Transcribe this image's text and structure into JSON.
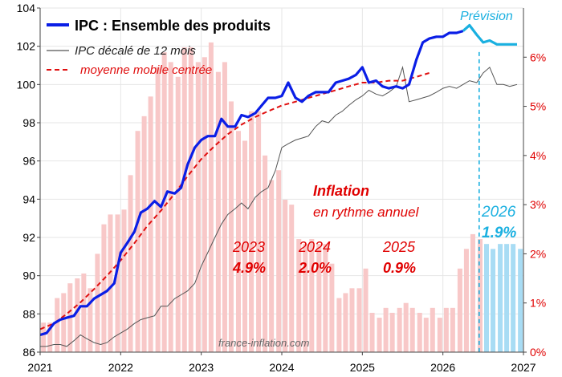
{
  "colors": {
    "ipc": "#0a1ee6",
    "lagged": "#555555",
    "moving_avg": "#e01010",
    "inflation_bar": "#f8c8c8",
    "forecast_bar": "#a8dcf4",
    "forecast": "#1ab0e0",
    "text_red": "#e00000",
    "grid": "#e6e6e6"
  },
  "chart_data": {
    "type": "line",
    "title": "",
    "x_axis": {
      "range": [
        2021,
        2027
      ],
      "ticks": [
        "2021",
        "2022",
        "2023",
        "2024",
        "2025",
        "2026",
        "2027"
      ]
    },
    "y_left": {
      "range": [
        86,
        104
      ],
      "ticks": [
        "86",
        "88",
        "90",
        "92",
        "94",
        "96",
        "98",
        "100",
        "102",
        "104"
      ]
    },
    "y_right": {
      "range": [
        0,
        7
      ],
      "ticks": [
        "0%",
        "1%",
        "2%",
        "3%",
        "4%",
        "5%",
        "6%"
      ]
    },
    "grid": true,
    "legend_position": "top-left",
    "legend": {
      "ipc": "IPC : Ensemble des produits",
      "lagged": "IPC décalé de 12 mois",
      "moving_avg": "moyenne mobile centrée"
    },
    "annotations": {
      "prevision": "Prévision",
      "inflation_title": "Inflation",
      "inflation_sub": "en rythme  annuel",
      "year_2023": "2023",
      "rate_2023": "4.9%",
      "year_2024": "2024",
      "rate_2024": "2.0%",
      "year_2025": "2025",
      "rate_2025": "0.9%",
      "year_2026": "2026",
      "rate_2026": "1.9%",
      "source": "france-inflation.com"
    },
    "forecast_start": 2026.45,
    "ipc_series": {
      "name": "IPC : Ensemble des produits",
      "x": [
        2021.0,
        2021.08,
        2021.17,
        2021.25,
        2021.33,
        2021.42,
        2021.5,
        2021.58,
        2021.67,
        2021.75,
        2021.83,
        2021.92,
        2022.0,
        2022.08,
        2022.17,
        2022.25,
        2022.33,
        2022.42,
        2022.5,
        2022.58,
        2022.67,
        2022.75,
        2022.83,
        2022.92,
        2023.0,
        2023.08,
        2023.17,
        2023.25,
        2023.33,
        2023.42,
        2023.5,
        2023.58,
        2023.67,
        2023.75,
        2023.83,
        2023.92,
        2024.0,
        2024.08,
        2024.17,
        2024.25,
        2024.33,
        2024.42,
        2024.5,
        2024.58,
        2024.67,
        2024.75,
        2024.83,
        2024.92,
        2025.0,
        2025.08,
        2025.17,
        2025.25,
        2025.33,
        2025.42,
        2025.5,
        2025.58,
        2025.67,
        2025.75,
        2025.83,
        2025.92,
        2026.0,
        2026.08,
        2026.17,
        2026.25,
        2026.33,
        2026.42,
        2026.5,
        2026.58,
        2026.67,
        2026.75,
        2026.83,
        2026.92
      ],
      "y": [
        86.9,
        87.0,
        87.5,
        87.7,
        87.8,
        87.9,
        88.4,
        88.4,
        88.8,
        89.0,
        89.2,
        89.6,
        91.2,
        91.7,
        92.3,
        93.3,
        93.5,
        93.9,
        93.6,
        94.4,
        94.3,
        94.6,
        95.8,
        96.7,
        97.1,
        97.3,
        97.3,
        98.2,
        97.8,
        97.8,
        98.4,
        98.3,
        98.5,
        98.9,
        99.3,
        99.3,
        99.4,
        100.1,
        99.3,
        99.1,
        99.4,
        99.6,
        99.6,
        99.6,
        100.1,
        100.2,
        100.3,
        100.5,
        100.9,
        100.1,
        100.2,
        99.9,
        99.8,
        99.9,
        99.8,
        100.0,
        101.3,
        102.2,
        102.4,
        102.5,
        102.5,
        102.7,
        102.7,
        102.8,
        103.1,
        102.6,
        102.2,
        102.3,
        102.1,
        102.1,
        102.1,
        102.1
      ]
    },
    "lagged_series": {
      "name": "IPC décalé de 12 mois",
      "x": [
        2021.0,
        2021.08,
        2021.17,
        2021.25,
        2021.33,
        2021.42,
        2021.5,
        2021.58,
        2021.67,
        2021.75,
        2021.83,
        2021.92,
        2022.0,
        2022.08,
        2022.17,
        2022.25,
        2022.33,
        2022.42,
        2022.5,
        2022.58,
        2022.67,
        2022.75,
        2022.83,
        2022.92,
        2023.0,
        2023.08,
        2023.17,
        2023.25,
        2023.33,
        2023.42,
        2023.5,
        2023.58,
        2023.67,
        2023.75,
        2023.83,
        2023.92,
        2024.0,
        2024.08,
        2024.17,
        2024.25,
        2024.33,
        2024.42,
        2024.5,
        2024.58,
        2024.67,
        2024.75,
        2024.83,
        2024.92,
        2025.0,
        2025.08,
        2025.17,
        2025.25,
        2025.33,
        2025.42,
        2025.5,
        2025.58,
        2025.67,
        2025.75,
        2025.83,
        2025.92,
        2026.0,
        2026.08,
        2026.17,
        2026.25,
        2026.33,
        2026.42,
        2026.5,
        2026.58,
        2026.67,
        2026.75,
        2026.83,
        2026.92
      ],
      "y": [
        86.3,
        86.3,
        86.4,
        86.4,
        86.3,
        86.6,
        86.9,
        86.7,
        86.5,
        86.4,
        86.5,
        86.8,
        87.0,
        87.2,
        87.5,
        87.7,
        87.8,
        87.9,
        88.4,
        88.4,
        88.8,
        89.0,
        89.2,
        89.6,
        90.5,
        91.2,
        92.0,
        92.7,
        93.2,
        93.5,
        93.8,
        93.5,
        94.1,
        94.4,
        94.6,
        95.5,
        96.7,
        96.9,
        97.1,
        97.2,
        97.3,
        97.8,
        98.1,
        98.0,
        98.4,
        98.6,
        98.9,
        99.2,
        99.4,
        99.7,
        99.5,
        99.4,
        99.6,
        99.9,
        100.9,
        99.1,
        99.2,
        99.3,
        99.4,
        99.6,
        99.8,
        99.9,
        99.8,
        100.0,
        100.2,
        100.1,
        100.6,
        100.9,
        100.0,
        100.0,
        99.9,
        100.0
      ]
    },
    "moving_avg_series": {
      "name": "moyenne mobile centrée",
      "x": [
        2021.0,
        2021.17,
        2021.33,
        2021.5,
        2021.67,
        2021.83,
        2022.0,
        2022.17,
        2022.33,
        2022.5,
        2022.67,
        2022.83,
        2023.0,
        2023.17,
        2023.33,
        2023.5,
        2023.67,
        2023.83,
        2024.0,
        2024.17,
        2024.33,
        2024.5,
        2024.67,
        2024.83,
        2025.0,
        2025.17,
        2025.33,
        2025.5,
        2025.67,
        2025.83
      ],
      "y": [
        87.2,
        87.5,
        88.0,
        88.6,
        89.3,
        90.0,
        90.8,
        91.7,
        92.6,
        93.4,
        94.3,
        95.2,
        96.1,
        96.8,
        97.4,
        97.9,
        98.3,
        98.6,
        98.9,
        99.1,
        99.3,
        99.5,
        99.7,
        99.9,
        100.1,
        100.1,
        100.2,
        100.2,
        100.4,
        100.6
      ]
    },
    "inflation_bars": {
      "x": [
        2021.0,
        2021.08,
        2021.17,
        2021.25,
        2021.33,
        2021.42,
        2021.5,
        2021.58,
        2021.67,
        2021.75,
        2021.83,
        2021.92,
        2022.0,
        2022.08,
        2022.17,
        2022.25,
        2022.33,
        2022.42,
        2022.5,
        2022.58,
        2022.67,
        2022.75,
        2022.83,
        2022.92,
        2023.0,
        2023.08,
        2023.17,
        2023.25,
        2023.33,
        2023.42,
        2023.5,
        2023.58,
        2023.67,
        2023.75,
        2023.83,
        2023.92,
        2024.0,
        2024.08,
        2024.17,
        2024.25,
        2024.33,
        2024.42,
        2024.5,
        2024.58,
        2024.67,
        2024.75,
        2024.83,
        2024.92,
        2025.0,
        2025.08,
        2025.17,
        2025.25,
        2025.33,
        2025.42,
        2025.5,
        2025.58,
        2025.67,
        2025.75,
        2025.83,
        2025.92,
        2026.0,
        2026.08,
        2026.17,
        2026.25,
        2026.33,
        2026.42,
        2026.5,
        2026.58,
        2026.67,
        2026.75,
        2026.83,
        2026.92
      ],
      "values": [
        0.6,
        0.6,
        1.1,
        1.2,
        1.4,
        1.5,
        1.6,
        1.3,
        2.0,
        2.6,
        2.8,
        2.8,
        2.9,
        3.6,
        4.5,
        4.8,
        5.2,
        5.8,
        6.1,
        5.9,
        5.6,
        6.2,
        6.2,
        5.9,
        6.0,
        6.3,
        5.7,
        5.9,
        5.1,
        4.5,
        4.3,
        4.9,
        4.9,
        4.0,
        3.5,
        3.7,
        3.1,
        3.0,
        2.3,
        2.2,
        2.3,
        2.2,
        2.2,
        1.8,
        1.1,
        1.2,
        1.3,
        1.3,
        1.7,
        0.8,
        0.7,
        0.9,
        0.8,
        0.9,
        1.0,
        0.9,
        0.8,
        0.7,
        0.9,
        0.7,
        0.9,
        0.9,
        1.7,
        2.1,
        2.4,
        2.3,
        2.2,
        2.1,
        2.2,
        2.2,
        2.2,
        2.1
      ],
      "forecast_from_index": 66
    }
  }
}
